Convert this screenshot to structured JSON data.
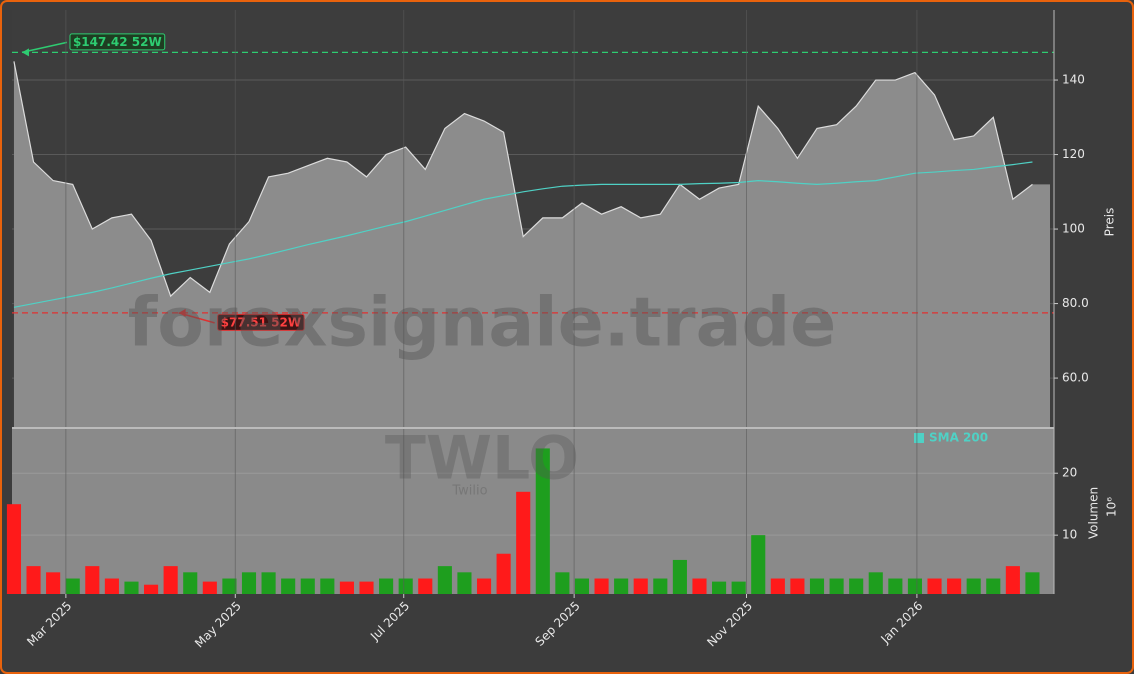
{
  "chart_data": [
    {
      "type": "area",
      "y_label": "Preis",
      "watermark": "forexsignale.trade",
      "symbol": "TWLO",
      "name": "Twilio",
      "categories": [
        null,
        null,
        null,
        null,
        null,
        null,
        null,
        null,
        null,
        null,
        null,
        null,
        null,
        null,
        null,
        null,
        null,
        null,
        null,
        null,
        null,
        null,
        null,
        null,
        null,
        null,
        null,
        null,
        null,
        null,
        null,
        null,
        null,
        null,
        null,
        null,
        null,
        null,
        null,
        null,
        null,
        null,
        null,
        null,
        null,
        null,
        null,
        null,
        null,
        null,
        null,
        null,
        null
      ],
      "series": [
        {
          "color": "#8c8c8c",
          "values": [
            145,
            118,
            113,
            112,
            100,
            103,
            104,
            97,
            82,
            87,
            83,
            96,
            102,
            114,
            115,
            117,
            119,
            118,
            114,
            120,
            122,
            116,
            127,
            131,
            129,
            126,
            98,
            103,
            103,
            107,
            104,
            106,
            103,
            104,
            112,
            108,
            111,
            112,
            133,
            127,
            119,
            127,
            128,
            133,
            140,
            140,
            142,
            136,
            124,
            125,
            130,
            108,
            112
          ]
        },
        {
          "name": "SMA 200",
          "color": "#4fd1c5",
          "values": [
            79,
            80,
            81,
            82,
            83,
            84.2,
            85.5,
            86.8,
            88,
            89,
            90,
            91,
            92,
            93.2,
            94.5,
            95.8,
            97,
            98.2,
            99.5,
            100.8,
            102,
            103.5,
            105,
            106.5,
            108,
            109,
            110,
            110.8,
            111.5,
            111.8,
            112,
            112,
            112,
            112,
            112,
            112.2,
            112.3,
            112.5,
            113,
            112.7,
            112.3,
            112,
            112.3,
            112.7,
            113,
            114,
            115,
            115.3,
            115.7,
            116,
            116.7,
            117.3,
            118
          ]
        }
      ],
      "annotations": [
        {
          "text": "$147.42 52W",
          "value": 147.42,
          "x": 0,
          "color": "#2ecc71"
        },
        {
          "text": "$77.51 52W",
          "value": 77.51,
          "x": 8,
          "color": "#e03030"
        }
      ],
      "xlim": [
        -0.1,
        53.1
      ],
      "ylim": [
        46.6,
        158.8
      ],
      "yticks": [
        {
          "value": 60,
          "label": "60.0"
        },
        {
          "value": 80,
          "label": "80.0"
        },
        100,
        120,
        140
      ],
      "grid": true
    },
    {
      "type": "bar",
      "y_label": "Volumen",
      "y_scale_label": "10⁶",
      "categories": [
        null,
        null,
        null,
        null,
        null,
        null,
        null,
        null,
        null,
        null,
        null,
        null,
        null,
        null,
        null,
        null,
        null,
        null,
        null,
        null,
        null,
        null,
        null,
        null,
        null,
        null,
        null,
        null,
        null,
        null,
        null,
        null,
        null,
        null,
        null,
        null,
        null,
        null,
        null,
        null,
        null,
        null,
        null,
        null,
        null,
        null,
        null,
        null,
        null,
        null,
        null,
        null,
        null
      ],
      "values": [
        15,
        5,
        4,
        3,
        5,
        3,
        2.5,
        2,
        5,
        4,
        2.5,
        3,
        4,
        4,
        3,
        3,
        3,
        2.5,
        2.5,
        3,
        3,
        3,
        5,
        4,
        3,
        7,
        17,
        24,
        4,
        3,
        3,
        3,
        3,
        3,
        6,
        3,
        2.5,
        2.5,
        10,
        3,
        3,
        3,
        3,
        3,
        4,
        3,
        3,
        3,
        3,
        3,
        3,
        5,
        4
      ],
      "colors": [
        "#ff1a1a",
        "#ff1a1a",
        "#ff1a1a",
        "#1e9e1e",
        "#ff1a1a",
        "#ff1a1a",
        "#1e9e1e",
        "#ff1a1a",
        "#ff1a1a",
        "#1e9e1e",
        "#ff1a1a",
        "#1e9e1e",
        "#1e9e1e",
        "#1e9e1e",
        "#1e9e1e",
        "#1e9e1e",
        "#1e9e1e",
        "#ff1a1a",
        "#ff1a1a",
        "#1e9e1e",
        "#1e9e1e",
        "#ff1a1a",
        "#1e9e1e",
        "#1e9e1e",
        "#ff1a1a",
        "#ff1a1a",
        "#ff1a1a",
        "#1e9e1e",
        "#1e9e1e",
        "#1e9e1e",
        "#ff1a1a",
        "#1e9e1e",
        "#ff1a1a",
        "#1e9e1e",
        "#1e9e1e",
        "#ff1a1a",
        "#1e9e1e",
        "#1e9e1e",
        "#1e9e1e",
        "#ff1a1a",
        "#ff1a1a",
        "#1e9e1e",
        "#1e9e1e",
        "#1e9e1e",
        "#1e9e1e",
        "#1e9e1e",
        "#1e9e1e",
        "#ff1a1a",
        "#ff1a1a",
        "#1e9e1e",
        "#1e9e1e",
        "#ff1a1a",
        "#1e9e1e"
      ],
      "xlim": [
        -0.1,
        53.1
      ],
      "ylim": [
        0.5,
        27.3
      ],
      "yticks": [
        10,
        20
      ],
      "xticks": [
        {
          "value": 2.65,
          "label": "Mar 2025"
        },
        {
          "value": 11.3,
          "label": "May 2025"
        },
        {
          "value": 19.9,
          "label": "Jul 2025"
        },
        {
          "value": 28.6,
          "label": "Sep 2025"
        },
        {
          "value": 37.4,
          "label": "Nov 2025"
        },
        {
          "value": 46.1,
          "label": "Jan 2026"
        }
      ]
    }
  ]
}
